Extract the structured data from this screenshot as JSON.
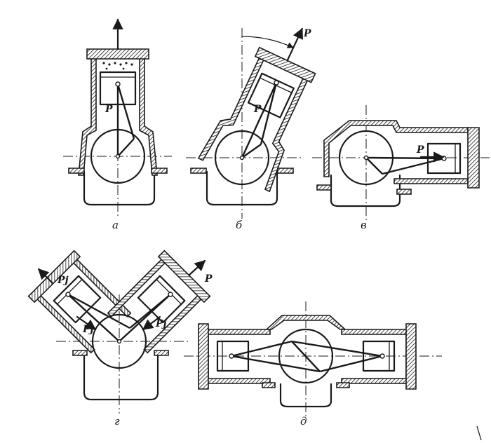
{
  "variants": [
    {
      "id": "a",
      "caption": "а",
      "force_labels": [
        "P"
      ]
    },
    {
      "id": "b",
      "caption": "б",
      "force_labels": [
        "P",
        "P"
      ]
    },
    {
      "id": "v",
      "caption": "в",
      "force_labels": [
        "P"
      ]
    },
    {
      "id": "g",
      "caption": "г",
      "force_labels": [
        "Pj",
        "Pj",
        "Pj",
        "P"
      ]
    },
    {
      "id": "d",
      "caption": "д",
      "force_labels": []
    }
  ],
  "colors": {
    "ink": "#1a1a1a",
    "background": "#ffffff"
  }
}
